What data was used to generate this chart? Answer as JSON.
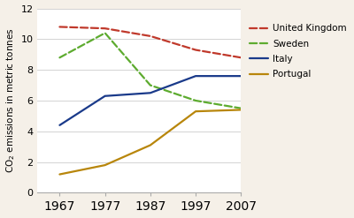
{
  "years": [
    1967,
    1977,
    1987,
    1997,
    2007
  ],
  "series": {
    "United Kingdom": [
      10.8,
      10.7,
      10.2,
      9.3,
      8.8
    ],
    "Sweden": [
      8.8,
      10.4,
      7.0,
      6.0,
      5.5
    ],
    "Italy": [
      4.4,
      6.3,
      6.5,
      7.6,
      7.6
    ],
    "Portugal": [
      1.2,
      1.8,
      3.1,
      5.3,
      5.4
    ]
  },
  "colors": {
    "United Kingdom": "#c0392b",
    "Sweden": "#5dab2f",
    "Italy": "#1a3a8a",
    "Portugal": "#b8860b"
  },
  "linestyles": {
    "United Kingdom": "--",
    "Sweden": "--",
    "Italy": "-",
    "Portugal": "-"
  },
  "legend_order": [
    "United Kingdom",
    "Sweden",
    "Italy",
    "Portugal"
  ],
  "ylabel": "CO$_2$ emissions in metric tonnes",
  "ylim": [
    0,
    12
  ],
  "yticks": [
    0,
    2,
    4,
    6,
    8,
    10,
    12
  ],
  "xticks": [
    1967,
    1977,
    1987,
    1997,
    2007
  ],
  "bg_outer": "#f5f0e8",
  "bg_plot": "#ffffff",
  "legend_fontsize": 7.5,
  "ylabel_fontsize": 7.5,
  "tick_fontsize": 8.0
}
